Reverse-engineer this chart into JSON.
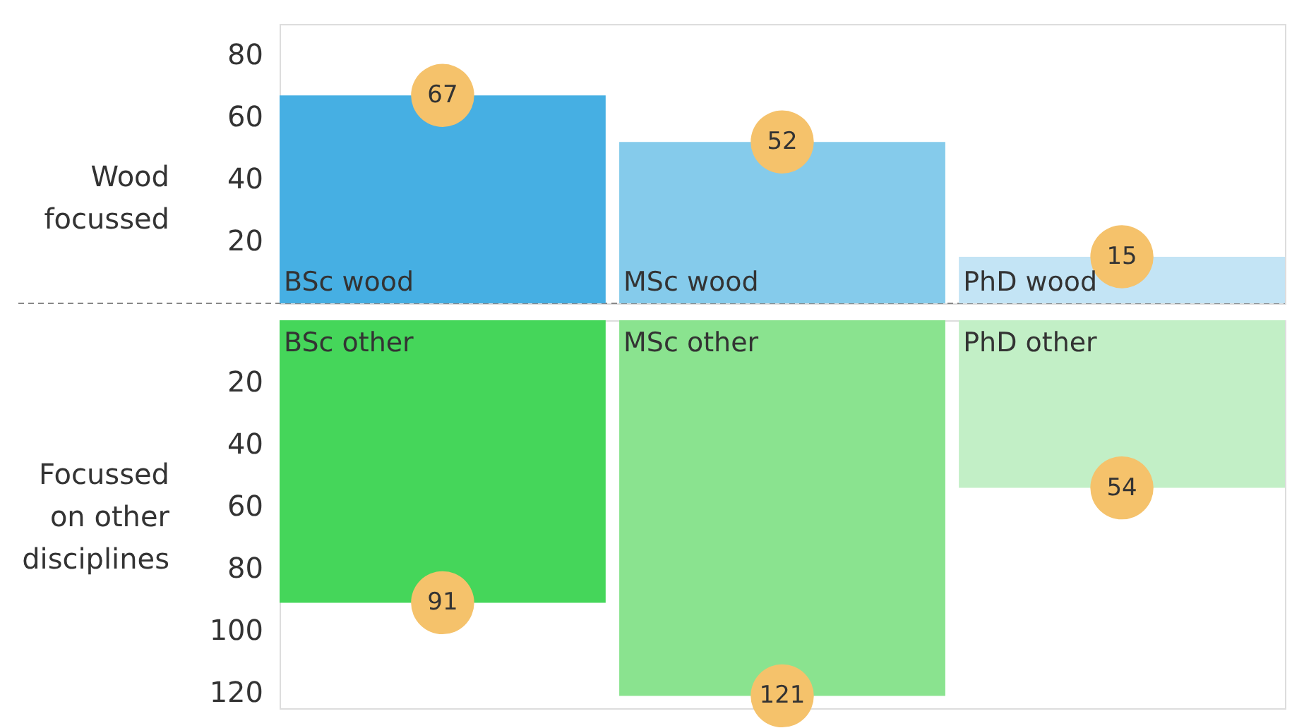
{
  "chart_data": [
    {
      "type": "bar",
      "ylabel": "Wood focussed",
      "categories": [
        null,
        null,
        null
      ],
      "colors": [
        "#46afe3",
        "#85cbeb",
        "#c3e4f5"
      ],
      "values": [
        67,
        52,
        15
      ],
      "data_labels": true,
      "ylim": [
        0,
        90
      ],
      "yticks": [
        20,
        40,
        60,
        80
      ],
      "tick_labels": "y",
      "grid": false,
      "ref_lines": [
        {
          "axis": "y",
          "value": 0,
          "color": "#888888",
          "line_style": "dashed"
        }
      ],
      "annotations": [
        "BSc wood",
        "MSc wood",
        "PhD wood"
      ]
    },
    {
      "type": "bar",
      "ylabel": "Focussed on other disciplines",
      "categories": [
        null,
        null,
        null
      ],
      "colors": [
        "#45d65a",
        "#8ae38f",
        "#c2efc6"
      ],
      "values": [
        91,
        121,
        54
      ],
      "data_labels": true,
      "ylim": [
        125,
        0
      ],
      "yticks": [
        20,
        40,
        60,
        80,
        100,
        120
      ],
      "tick_labels": "y",
      "grid": false,
      "annotations": [
        "BSc other",
        "MSc other",
        "PhD other"
      ]
    }
  ]
}
